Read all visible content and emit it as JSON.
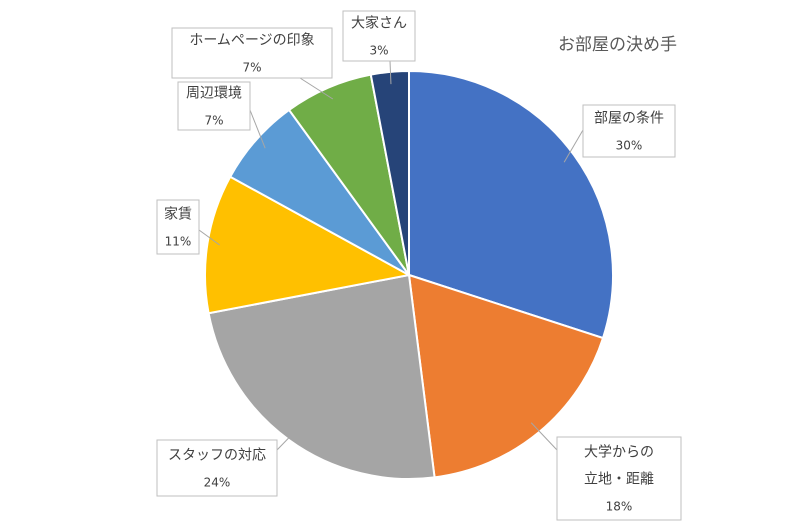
{
  "chart_data": {
    "type": "pie",
    "title": "お部屋の決め手",
    "start_angle_deg": 0,
    "direction": "clockwise",
    "slices": [
      {
        "label": "部屋の条件",
        "value": 30,
        "value_label": "30%",
        "color": "#4472C4"
      },
      {
        "label": "大学からの立地・距離",
        "label_lines": [
          "大学からの",
          "立地・距離"
        ],
        "value": 18,
        "value_label": "18%",
        "color": "#ED7D31"
      },
      {
        "label": "スタッフの対応",
        "value": 24,
        "value_label": "24%",
        "color": "#A5A5A5"
      },
      {
        "label": "家賃",
        "value": 11,
        "value_label": "11%",
        "color": "#FFC000"
      },
      {
        "label": "周辺環境",
        "value": 7,
        "value_label": "7%",
        "color": "#5B9BD5"
      },
      {
        "label": "ホームページの印象",
        "value": 7,
        "value_label": "7%",
        "color": "#70AD47"
      },
      {
        "label": "大家さん",
        "value": 3,
        "value_label": "3%",
        "color": "#264478"
      }
    ],
    "legend": "none",
    "data_labels": "callout-boxes"
  }
}
